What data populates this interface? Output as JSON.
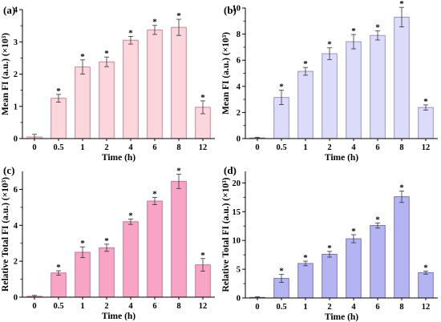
{
  "chart_data": [
    {
      "panel": "(a)",
      "type": "bar",
      "categories": [
        "0",
        "0.5",
        "1",
        "2",
        "4",
        "6",
        "8",
        "12"
      ],
      "values": [
        0.05,
        1.25,
        2.22,
        2.38,
        3.05,
        3.37,
        3.45,
        0.97
      ],
      "errors": [
        0.08,
        0.12,
        0.22,
        0.15,
        0.12,
        0.14,
        0.25,
        0.2
      ],
      "significant": [
        false,
        true,
        true,
        true,
        true,
        true,
        true,
        true
      ],
      "star_label": "*",
      "xlabel": "Time (h)",
      "ylabel": "Mean FI (a.u.) (×10³)",
      "ylim": [
        0,
        4
      ],
      "yticks": [
        0,
        1,
        2,
        3,
        4
      ],
      "bar_color": "#fbd6dd",
      "edge_color": "#c97a8a",
      "grid": false
    },
    {
      "panel": "(b)",
      "type": "bar",
      "categories": [
        "0",
        "0.5",
        "1",
        "2",
        "4",
        "6",
        "8",
        "12"
      ],
      "values": [
        0.05,
        3.15,
        5.15,
        6.5,
        7.42,
        7.9,
        9.3,
        2.38
      ],
      "errors": [
        0.05,
        0.55,
        0.3,
        0.45,
        0.55,
        0.35,
        0.75,
        0.2
      ],
      "significant": [
        false,
        true,
        true,
        true,
        true,
        true,
        true,
        true
      ],
      "star_label": "*",
      "xlabel": "Time (h)",
      "ylabel": "Mean FI (a.u.) (×10³)",
      "ylim": [
        0,
        10
      ],
      "yticks": [
        0,
        2,
        4,
        6,
        8,
        10
      ],
      "bar_color": "#dcdcfa",
      "edge_color": "#8a8ad0",
      "grid": false
    },
    {
      "panel": "(c)",
      "type": "bar",
      "categories": [
        "0",
        "0.5",
        "1",
        "2",
        "4",
        "6",
        "8",
        "12"
      ],
      "values": [
        0.05,
        1.35,
        2.5,
        2.75,
        4.2,
        5.35,
        6.45,
        1.8
      ],
      "errors": [
        0.05,
        0.12,
        0.3,
        0.2,
        0.15,
        0.2,
        0.4,
        0.35
      ],
      "significant": [
        false,
        true,
        true,
        true,
        true,
        true,
        true,
        true
      ],
      "star_label": "*",
      "xlabel": "Time (h)",
      "ylabel": "Relative Total FI (a.u.) (×10³)",
      "ylim": [
        0,
        7
      ],
      "yticks": [
        0,
        2,
        4,
        6
      ],
      "bar_color": "#f8a4c4",
      "edge_color": "#c96a90",
      "grid": false
    },
    {
      "panel": "(d)",
      "type": "bar",
      "categories": [
        "0",
        "0.5",
        "1",
        "2",
        "4",
        "6",
        "8",
        "12"
      ],
      "values": [
        0.1,
        3.4,
        6.0,
        7.6,
        10.3,
        12.6,
        17.6,
        4.4
      ],
      "errors": [
        0.1,
        0.7,
        0.4,
        0.5,
        0.7,
        0.45,
        1.0,
        0.25
      ],
      "significant": [
        false,
        true,
        true,
        true,
        true,
        true,
        true,
        true
      ],
      "star_label": "*",
      "xlabel": "Time (h)",
      "ylabel": "Relative Total FI (a.u.) (×10³)",
      "ylim": [
        0,
        22
      ],
      "yticks": [
        0,
        5,
        10,
        15,
        20
      ],
      "bar_color": "#b4b4f2",
      "edge_color": "#6a6ac8",
      "grid": false
    }
  ]
}
